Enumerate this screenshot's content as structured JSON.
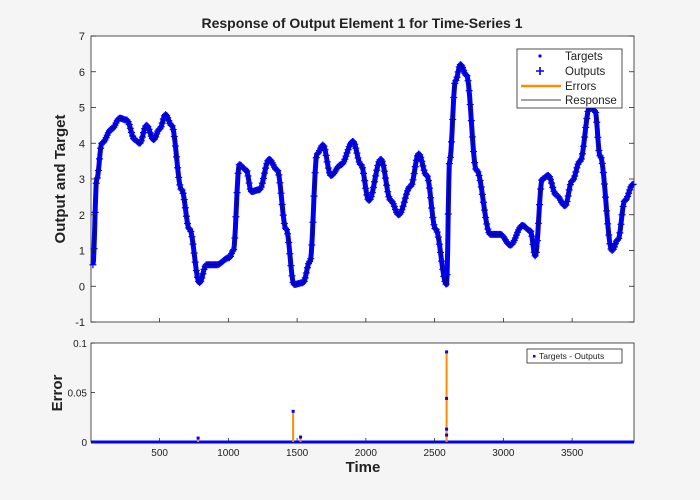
{
  "chart_data": [
    {
      "type": "line",
      "title": "Response of Output Element 1 for Time-Series 1",
      "xlabel": "",
      "ylabel": "Output and Target",
      "xlim": [
        1,
        3950
      ],
      "ylim": [
        -1,
        7
      ],
      "yticks": [
        -1,
        0,
        1,
        2,
        3,
        4,
        5,
        6,
        7
      ],
      "grid": false,
      "legend_placement": "top-right",
      "legend": [
        "Targets",
        "Outputs",
        "Errors",
        "Response"
      ],
      "colors": {
        "targets": "#0000ff",
        "outputs": "#0000ff",
        "errors": "#ff8c00",
        "response": "#000000"
      },
      "series": [
        {
          "name": "Targets",
          "marker": "dot",
          "x": [
            15,
            43,
            80,
            152,
            210,
            260,
            320,
            355,
            405,
            456,
            500,
            543,
            587,
            660,
            717,
            790,
            840,
            913,
            1007,
            1036,
            1080,
            1130,
            1167,
            1225,
            1297,
            1355,
            1420,
            1478,
            1543,
            1594,
            1645,
            1688,
            1746,
            1819,
            1906,
            1964,
            2022,
            2109,
            2181,
            2239,
            2326,
            2384,
            2442,
            2507,
            2587,
            2609,
            2652,
            2688,
            2732,
            2804,
            2906,
            2978,
            3051,
            3138,
            3196,
            3232,
            3283,
            3326,
            3384,
            3449,
            3500,
            3558,
            3630,
            3667,
            3703,
            3790,
            3833,
            3884,
            3942
          ],
          "y": [
            0.6,
            3.0,
            4.0,
            4.4,
            4.7,
            4.65,
            4.1,
            4.0,
            4.5,
            4.1,
            4.4,
            4.8,
            4.5,
            2.7,
            1.6,
            0.1,
            0.6,
            0.6,
            0.8,
            1.0,
            3.4,
            3.25,
            2.65,
            2.7,
            3.55,
            3.25,
            1.6,
            0.05,
            0.1,
            0.7,
            3.7,
            3.95,
            3.1,
            3.4,
            4.05,
            3.4,
            2.4,
            3.55,
            2.4,
            2.0,
            2.8,
            3.7,
            3.1,
            1.6,
            0.05,
            3.5,
            5.75,
            6.2,
            5.9,
            3.25,
            1.45,
            1.45,
            1.15,
            1.7,
            1.55,
            0.85,
            3.0,
            3.1,
            2.55,
            2.25,
            2.95,
            3.5,
            5.05,
            4.9,
            3.65,
            1.0,
            1.3,
            2.4,
            2.85
          ]
        },
        {
          "name": "Outputs",
          "marker": "plus",
          "same_as": "Targets"
        }
      ]
    },
    {
      "type": "line",
      "xlabel": "Time",
      "ylabel": "Error",
      "xlim": [
        1,
        3950
      ],
      "ylim": [
        0,
        0.1
      ],
      "xticks": [
        500,
        1000,
        1500,
        2000,
        2500,
        3000,
        3500
      ],
      "yticks": [
        0,
        0.05,
        0.1
      ],
      "ytick_labels": [
        "0",
        "0.05",
        "0.1"
      ],
      "legend_placement": "top-right",
      "legend": [
        "Targets - Outputs"
      ],
      "baseline": 0,
      "spikes": [
        {
          "x": 780,
          "y": [
            0.004
          ]
        },
        {
          "x": 1471,
          "y": [
            0.031
          ]
        },
        {
          "x": 1525,
          "y": [
            0.005
          ]
        },
        {
          "x": 2587,
          "y": [
            0.091,
            0.044,
            0.013,
            0.007
          ]
        }
      ]
    }
  ]
}
